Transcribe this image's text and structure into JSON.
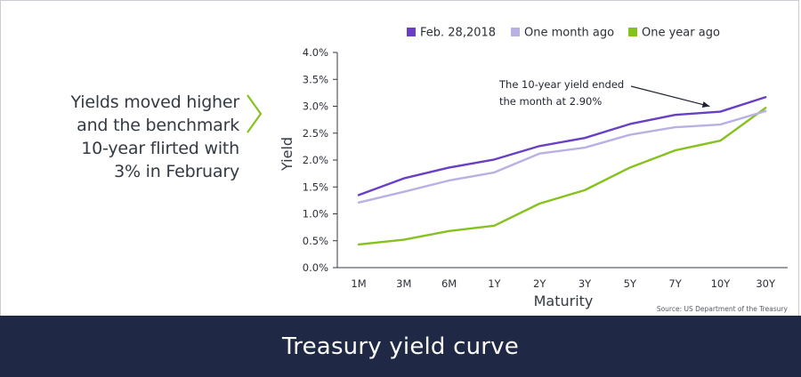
{
  "headline": {
    "lines": [
      "Yields moved higher",
      "and the benchmark",
      "10-year flirted with",
      "3% in February"
    ]
  },
  "footer": {
    "title": "Treasury yield curve"
  },
  "source": "Source: US Department of the Treasury",
  "annotation": {
    "lines": [
      "The 10-year yield ended",
      "the month at 2.90%"
    ],
    "target_category": "10Y",
    "target_value": 2.9
  },
  "colors": {
    "feb": "#6a3fc4",
    "month": "#b9b0e4",
    "year": "#86c21e",
    "axis": "#333a44",
    "footer": "#1f2945",
    "chevron": "#86c21e"
  },
  "chart_data": {
    "type": "line",
    "title": "",
    "xlabel": "Maturity",
    "ylabel": "Yield",
    "ylim": [
      0,
      4.0
    ],
    "yticks": [
      "0.0%",
      "0.5%",
      "1.0%",
      "1.5%",
      "2.0%",
      "2.5%",
      "3.0%",
      "3.5%",
      "4.0%"
    ],
    "categories": [
      "1M",
      "3M",
      "6M",
      "1Y",
      "2Y",
      "3Y",
      "5Y",
      "7Y",
      "10Y",
      "30Y"
    ],
    "legend_position": "top",
    "grid": false,
    "series": [
      {
        "name": "Feb. 28,2018",
        "color": "#6a3fc4",
        "values": [
          1.35,
          1.66,
          1.86,
          2.01,
          2.26,
          2.41,
          2.67,
          2.84,
          2.9,
          3.17
        ]
      },
      {
        "name": "One month ago",
        "color": "#b9b0e4",
        "values": [
          1.21,
          1.41,
          1.62,
          1.77,
          2.12,
          2.23,
          2.47,
          2.61,
          2.66,
          2.91
        ]
      },
      {
        "name": "One year ago",
        "color": "#86c21e",
        "values": [
          0.43,
          0.52,
          0.68,
          0.78,
          1.19,
          1.44,
          1.86,
          2.18,
          2.36,
          2.97
        ]
      }
    ]
  }
}
